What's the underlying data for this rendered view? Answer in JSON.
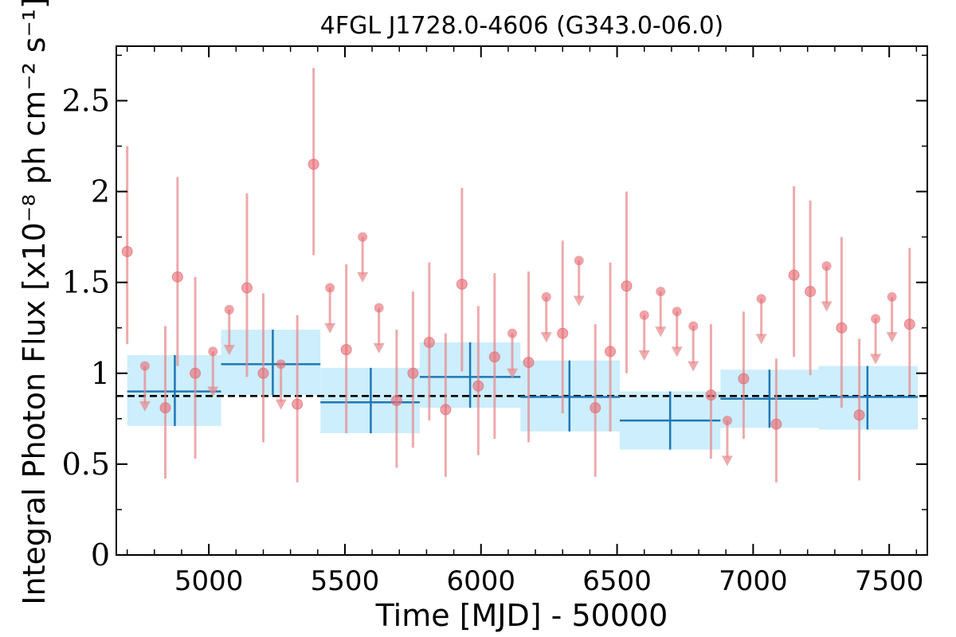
{
  "chart_data": {
    "type": "scatter",
    "title": "4FGL J1728.0-4606 (G343.0-06.0)",
    "xlabel": "Time [MJD] - 50000",
    "ylabel": "Integral Photon Flux [x10⁻⁸ ph cm⁻² s⁻¹]",
    "xlim": [
      4660,
      7640
    ],
    "ylim": [
      0,
      2.8
    ],
    "x_ticks": [
      5000,
      5500,
      6000,
      6500,
      7000,
      7500
    ],
    "y_ticks": [
      0,
      0.5,
      1,
      1.5,
      2,
      2.5
    ],
    "y_tick_labels": [
      "0",
      "0.5",
      "1",
      "1.5",
      "2",
      "2.5"
    ],
    "grid": false,
    "mean_flux": 0.875,
    "colors": {
      "short_bins": "#e8898c",
      "long_bins": "#1f77b4",
      "long_band": "#cdeefc",
      "mean_line": "#000000"
    },
    "series": [
      {
        "points": [
          {
            "x": 4700,
            "y": 1.67,
            "err": [
              1.16,
              2.25
            ]
          },
          {
            "x": 4885,
            "y": 1.53,
            "err": [
              1.04,
              2.08
            ]
          },
          {
            "x": 4950,
            "y": 1.0,
            "err": [
              0.53,
              1.53
            ]
          },
          {
            "x": 5140,
            "y": 1.47,
            "err": [
              0.98,
              1.99
            ]
          },
          {
            "x": 5200,
            "y": 1.0,
            "err": [
              0.62,
              1.44
            ]
          },
          {
            "x": 5385,
            "y": 2.15,
            "err": [
              1.65,
              2.68
            ]
          },
          {
            "x": 5505,
            "y": 1.13,
            "err": [
              0.67,
              1.6
            ]
          },
          {
            "x": 5690,
            "y": 0.85,
            "err": [
              0.48,
              1.24
            ]
          },
          {
            "x": 5750,
            "y": 1.0,
            "err": [
              0.59,
              1.45
            ]
          },
          {
            "x": 5810,
            "y": 1.17,
            "err": [
              0.74,
              1.61
            ]
          },
          {
            "x": 5930,
            "y": 1.49,
            "err": [
              1.01,
              2.02
            ]
          },
          {
            "x": 5990,
            "y": 0.93,
            "err": [
              0.55,
              1.37
            ]
          },
          {
            "x": 6050,
            "y": 1.09,
            "err": [
              0.64,
              1.55
            ]
          },
          {
            "x": 6175,
            "y": 1.06,
            "err": [
              0.62,
              1.56
            ]
          },
          {
            "x": 6300,
            "y": 1.22,
            "err": [
              0.78,
              1.73
            ]
          },
          {
            "x": 6475,
            "y": 1.12,
            "err": [
              0.68,
              1.61
            ]
          },
          {
            "x": 6535,
            "y": 1.48,
            "err": [
              1.0,
              2.0
            ]
          },
          {
            "x": 6965,
            "y": 0.97,
            "err": [
              0.64,
              1.34
            ]
          },
          {
            "x": 7150,
            "y": 1.54,
            "err": [
              1.09,
              2.03
            ]
          },
          {
            "x": 7210,
            "y": 1.45,
            "err": [
              0.99,
              1.95
            ]
          },
          {
            "x": 7325,
            "y": 1.25,
            "err": [
              0.81,
              1.75
            ]
          },
          {
            "x": 7575,
            "y": 1.27,
            "err": [
              0.88,
              1.69
            ]
          },
          {
            "x": 4840,
            "y": 0.81,
            "err": [
              0.42,
              1.26
            ]
          },
          {
            "x": 5325,
            "y": 0.83,
            "err": [
              0.4,
              1.32
            ]
          },
          {
            "x": 5870,
            "y": 0.8,
            "err": [
              0.43,
              1.22
            ]
          },
          {
            "x": 6420,
            "y": 0.81,
            "err": [
              0.43,
              1.27
            ]
          },
          {
            "x": 6845,
            "y": 0.88,
            "err": [
              0.53,
              1.27
            ]
          },
          {
            "x": 7085,
            "y": 0.72,
            "err": [
              0.4,
              1.08
            ]
          },
          {
            "x": 7390,
            "y": 0.77,
            "err": [
              0.41,
              1.19
            ]
          }
        ],
        "upper_limits": [
          {
            "x": 4765,
            "y": 1.04,
            "y_to": 0.82
          },
          {
            "x": 5015,
            "y": 1.12,
            "y_to": 0.9
          },
          {
            "x": 5075,
            "y": 1.35,
            "y_to": 1.13
          },
          {
            "x": 5265,
            "y": 1.05,
            "y_to": 0.83
          },
          {
            "x": 5445,
            "y": 1.47,
            "y_to": 1.25
          },
          {
            "x": 5565,
            "y": 1.75,
            "y_to": 1.53
          },
          {
            "x": 5625,
            "y": 1.36,
            "y_to": 1.14
          },
          {
            "x": 6115,
            "y": 1.22,
            "y_to": 1.0
          },
          {
            "x": 6240,
            "y": 1.42,
            "y_to": 1.2
          },
          {
            "x": 6360,
            "y": 1.62,
            "y_to": 1.4
          },
          {
            "x": 6600,
            "y": 1.32,
            "y_to": 1.1
          },
          {
            "x": 6660,
            "y": 1.45,
            "y_to": 1.23
          },
          {
            "x": 6720,
            "y": 1.34,
            "y_to": 1.12
          },
          {
            "x": 6780,
            "y": 1.26,
            "y_to": 1.04
          },
          {
            "x": 6905,
            "y": 0.74,
            "y_to": 0.52
          },
          {
            "x": 7030,
            "y": 1.41,
            "y_to": 1.19
          },
          {
            "x": 7270,
            "y": 1.59,
            "y_to": 1.37
          },
          {
            "x": 7450,
            "y": 1.3,
            "y_to": 1.08
          },
          {
            "x": 7510,
            "y": 1.42,
            "y_to": 1.2
          }
        ]
      },
      {
        "bins": [
          {
            "x0": 4700,
            "x1": 5045,
            "xc": 4875,
            "y": 0.9,
            "lo": 0.71,
            "hi": 1.1
          },
          {
            "x0": 5045,
            "x1": 5410,
            "xc": 5235,
            "y": 1.05,
            "lo": 0.88,
            "hi": 1.24
          },
          {
            "x0": 5410,
            "x1": 5775,
            "xc": 5595,
            "y": 0.84,
            "lo": 0.67,
            "hi": 1.03
          },
          {
            "x0": 5775,
            "x1": 6145,
            "xc": 5960,
            "y": 0.98,
            "lo": 0.81,
            "hi": 1.17
          },
          {
            "x0": 6145,
            "x1": 6510,
            "xc": 6325,
            "y": 0.87,
            "lo": 0.68,
            "hi": 1.07
          },
          {
            "x0": 6510,
            "x1": 6880,
            "xc": 6695,
            "y": 0.74,
            "lo": 0.58,
            "hi": 0.9
          },
          {
            "x0": 6880,
            "x1": 7240,
            "xc": 7060,
            "y": 0.86,
            "lo": 0.7,
            "hi": 1.02
          },
          {
            "x0": 7240,
            "x1": 7605,
            "xc": 7420,
            "y": 0.87,
            "lo": 0.69,
            "hi": 1.04
          }
        ]
      }
    ]
  }
}
